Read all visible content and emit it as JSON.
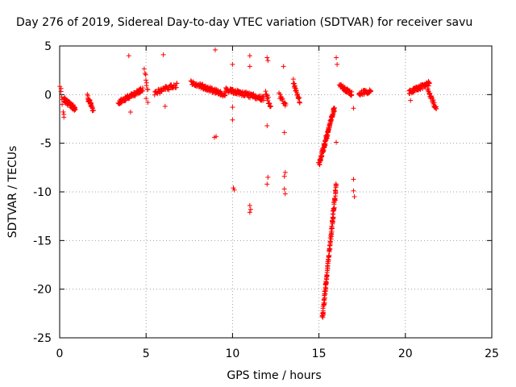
{
  "chart_data": {
    "type": "scatter",
    "title": "Day 276 of 2019, Sidereal Day-to-day VTEC variation (SDTVAR) for receiver savu",
    "xlabel": "GPS time / hours",
    "ylabel": "SDTVAR / TECUs",
    "xlim": [
      0,
      25
    ],
    "ylim": [
      -25,
      5
    ],
    "xticks": [
      0,
      5,
      10,
      15,
      20,
      25
    ],
    "yticks": [
      5,
      0,
      -5,
      -10,
      -15,
      -20,
      -25
    ],
    "xtick_labels": [
      "0",
      "5",
      "10",
      "15",
      "20",
      "25"
    ],
    "ytick_labels": [
      "5",
      "0",
      "-5",
      "-10",
      "-15",
      "-20",
      "-25"
    ],
    "grid": true,
    "marker": "+",
    "color": "#ff0000",
    "clusters": [
      {
        "x0": 0.0,
        "x1": 0.25,
        "y0": 1.5,
        "y1": -2.5,
        "n": 10
      },
      {
        "x0": 0.25,
        "x1": 0.9,
        "y0": -0.5,
        "y1": -1.5,
        "n": 70
      },
      {
        "x0": 1.6,
        "x1": 1.95,
        "y0": -0.2,
        "y1": -1.6,
        "n": 25
      },
      {
        "x0": 3.4,
        "x1": 4.8,
        "y0": -0.8,
        "y1": 0.5,
        "n": 70
      },
      {
        "x0": 4.9,
        "x1": 5.1,
        "y0": 2.5,
        "y1": 0.5,
        "n": 8
      },
      {
        "x0": 5.5,
        "x1": 6.8,
        "y0": 0.2,
        "y1": 1.0,
        "n": 40
      },
      {
        "x0": 7.6,
        "x1": 9.6,
        "y0": 1.2,
        "y1": 0.0,
        "n": 90
      },
      {
        "x0": 9.6,
        "x1": 11.8,
        "y0": 0.5,
        "y1": -0.4,
        "n": 110
      },
      {
        "x0": 11.9,
        "x1": 12.2,
        "y0": 0.3,
        "y1": -1.3,
        "n": 15
      },
      {
        "x0": 12.7,
        "x1": 13.1,
        "y0": 0.0,
        "y1": -1.2,
        "n": 15
      },
      {
        "x0": 13.5,
        "x1": 13.9,
        "y0": 1.4,
        "y1": -0.8,
        "n": 25
      },
      {
        "x0": 15.0,
        "x1": 15.9,
        "y0": -7.2,
        "y1": -1.4,
        "n": 110
      },
      {
        "x0": 15.2,
        "x1": 16.0,
        "y0": -23.0,
        "y1": -9.3,
        "n": 130
      },
      {
        "x0": 16.2,
        "x1": 16.9,
        "y0": 0.9,
        "y1": 0.1,
        "n": 45
      },
      {
        "x0": 17.3,
        "x1": 18.0,
        "y0": 0.1,
        "y1": 0.4,
        "n": 30
      },
      {
        "x0": 20.2,
        "x1": 21.4,
        "y0": 0.2,
        "y1": 1.2,
        "n": 70
      },
      {
        "x0": 21.3,
        "x1": 21.8,
        "y0": 0.4,
        "y1": -1.5,
        "n": 30
      }
    ],
    "points": [
      [
        4.0,
        4.0
      ],
      [
        4.1,
        -1.8
      ],
      [
        5.0,
        -0.4
      ],
      [
        5.1,
        -0.8
      ],
      [
        6.0,
        4.1
      ],
      [
        6.1,
        -1.2
      ],
      [
        9.0,
        4.6
      ],
      [
        8.95,
        -4.4
      ],
      [
        9.05,
        -4.3
      ],
      [
        10.0,
        3.1
      ],
      [
        10.0,
        -1.3
      ],
      [
        10.0,
        -2.6
      ],
      [
        10.05,
        -9.6
      ],
      [
        10.1,
        -9.8
      ],
      [
        11.0,
        4.0
      ],
      [
        11.0,
        2.9
      ],
      [
        11.0,
        -11.4
      ],
      [
        11.05,
        -11.8
      ],
      [
        11.0,
        -12.1
      ],
      [
        12.0,
        3.8
      ],
      [
        12.05,
        3.5
      ],
      [
        12.0,
        -3.2
      ],
      [
        12.05,
        -8.5
      ],
      [
        12.0,
        -9.2
      ],
      [
        12.95,
        2.9
      ],
      [
        13.0,
        -3.9
      ],
      [
        13.05,
        -8.0
      ],
      [
        13.0,
        -8.4
      ],
      [
        13.0,
        -9.7
      ],
      [
        13.05,
        -10.2
      ],
      [
        16.0,
        3.8
      ],
      [
        16.05,
        3.1
      ],
      [
        16.0,
        -4.9
      ],
      [
        17.0,
        -1.4
      ],
      [
        17.0,
        -8.7
      ],
      [
        17.0,
        -9.9
      ],
      [
        17.05,
        -10.5
      ],
      [
        20.3,
        -0.6
      ]
    ]
  }
}
